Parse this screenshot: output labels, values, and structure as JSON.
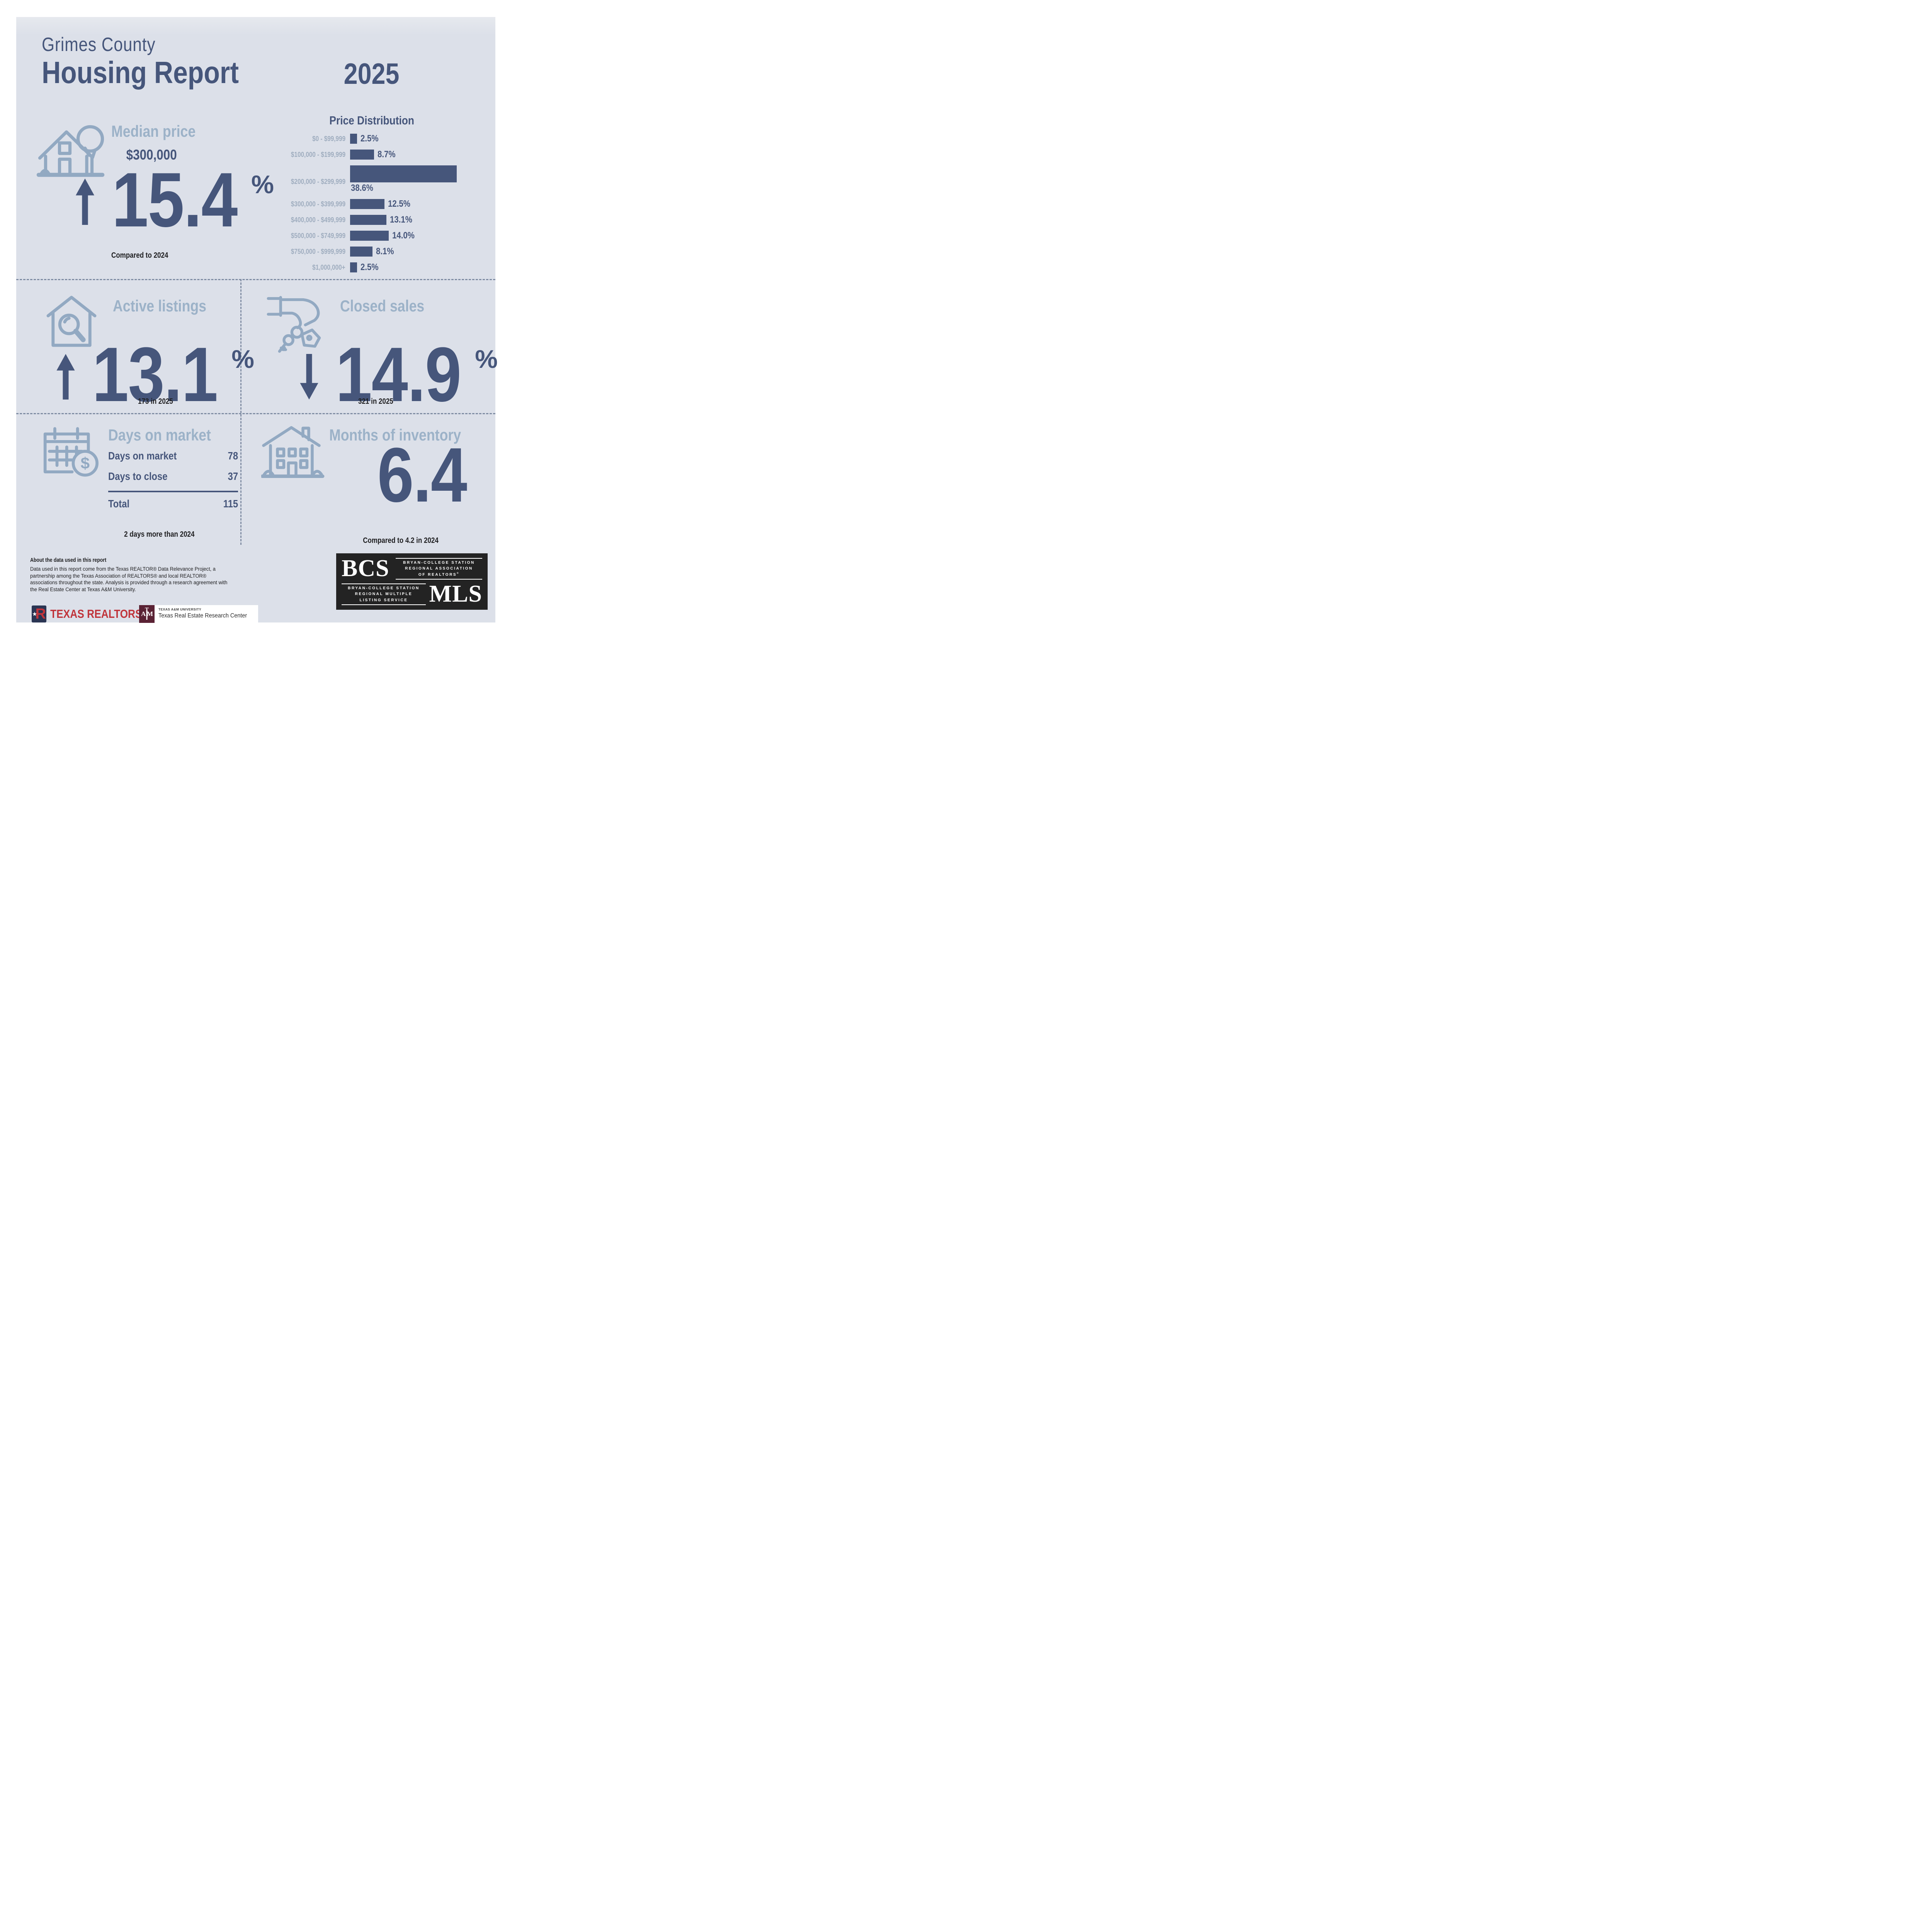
{
  "header": {
    "title_line1": "Grimes County",
    "title_line2": "Housing Report",
    "year": "2025"
  },
  "median_price": {
    "heading": "Median price",
    "value": "$300,000",
    "pct": "15.4",
    "pct_symbol": "%",
    "direction": "up",
    "note": "Compared to 2024"
  },
  "chart_data": {
    "type": "bar",
    "orientation": "horizontal",
    "title": "Price Distribution",
    "categories": [
      "$0 - $99,999",
      "$100,000 - $199,999",
      "$200,000 - $299,999",
      "$300,000 - $399,999",
      "$400,000 - $499,999",
      "$500,000 - $749,999",
      "$750,000 - $999,999",
      "$1,000,000+"
    ],
    "values": [
      2.5,
      8.7,
      38.6,
      12.5,
      13.1,
      14.0,
      8.1,
      2.5
    ],
    "value_labels": [
      "2.5%",
      "8.7%",
      "38.6%",
      "12.5%",
      "13.1%",
      "14.0%",
      "8.1%",
      "2.5%"
    ],
    "unit": "%",
    "xlim": [
      0,
      38.6
    ],
    "bar_color": "#46567b",
    "category_label_color": "#9fadbf",
    "legend": "none",
    "grid": "off"
  },
  "active_listings": {
    "heading": "Active listings",
    "pct": "13.1",
    "pct_symbol": "%",
    "direction": "up",
    "note": "173 in 2025"
  },
  "closed_sales": {
    "heading": "Closed sales",
    "pct": "14.9",
    "pct_symbol": "%",
    "direction": "down",
    "note": "321 in 2025"
  },
  "days_on_market": {
    "heading": "Days on market",
    "rows": [
      {
        "label": "Days on market",
        "value": "78"
      },
      {
        "label": "Days to close",
        "value": "37"
      }
    ],
    "total_label": "Total",
    "total_value": "115",
    "note": "2 days more than 2024"
  },
  "months_of_inventory": {
    "heading": "Months of inventory",
    "value": "6.4",
    "note": "Compared to 4.2 in 2024"
  },
  "about": {
    "heading": "About the data used in this report",
    "body": "Data used in this report come from the Texas REALTOR® Data Relevance Project, a partnership among the Texas Association of REALTORS® and local REALTOR® associations throughout the state. Analysis is provided through a research agreement with the Real Estate Center at Texas A&M University."
  },
  "logos": {
    "texas_realtors": {
      "text": "TEXAS REALTORS",
      "reg": "®",
      "star": "★",
      "r": "R"
    },
    "tamu": {
      "university": "TEXAS A&M UNIVERSITY",
      "center": "Texas Real Estate Research Center",
      "monogram_a": "A",
      "monogram_t": "T",
      "monogram_m": "M"
    },
    "bcs_mls": {
      "bcs": "BCS",
      "assoc_lines": [
        "BRYAN-COLLEGE STATION",
        "REGIONAL ASSOCIATION",
        "OF REALTORS"
      ],
      "assoc_reg": "®",
      "mls": "MLS",
      "mls_lines": [
        "BRYAN-COLLEGE STATION",
        "REGIONAL MULTIPLE",
        "LISTING SERVICE"
      ]
    }
  },
  "colors": {
    "panel_bg": "#dce0e9",
    "navy": "#46567b",
    "light_heading_blue": "#9cb2c8",
    "icon_stroke": "#92a9c2",
    "category_label": "#9fadbf",
    "dark_text": "#1e1e20",
    "realtor_red": "#c0343b",
    "aggie_maroon": "#5a2234",
    "bcs_box": "#232323"
  }
}
